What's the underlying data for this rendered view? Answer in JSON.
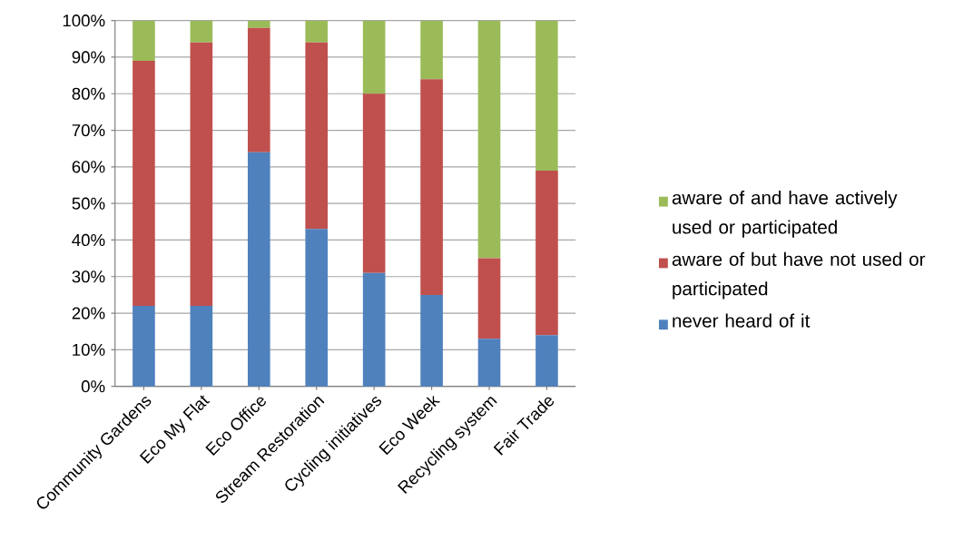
{
  "chart_data": {
    "type": "bar",
    "stacked": true,
    "grid": "y",
    "legend": "right",
    "categories": [
      "Community Gardens",
      "Eco My Flat",
      "Eco Office",
      "Stream Restoration",
      "Cycling initiatives",
      "Eco Week",
      "Recycling system",
      "Fair Trade"
    ],
    "ylim": [
      0,
      100
    ],
    "yticks": [
      {
        "value": 0,
        "label": "0%"
      },
      {
        "value": 10,
        "label": "10%"
      },
      {
        "value": 20,
        "label": "20%"
      },
      {
        "value": 30,
        "label": "30%"
      },
      {
        "value": 40,
        "label": "40%"
      },
      {
        "value": 50,
        "label": "50%"
      },
      {
        "value": 60,
        "label": "60%"
      },
      {
        "value": 70,
        "label": "70%"
      },
      {
        "value": 80,
        "label": "80%"
      },
      {
        "value": 90,
        "label": "90%"
      },
      {
        "value": 100,
        "label": "100%"
      }
    ],
    "series": [
      {
        "name": "never heard of it",
        "color": "#4f81bd",
        "values": [
          22,
          22,
          64,
          43,
          31,
          25,
          13,
          14
        ]
      },
      {
        "name": "aware of but have not used or participated",
        "color": "#c0504d",
        "values": [
          67,
          72,
          34,
          51,
          49,
          59,
          22,
          45
        ]
      },
      {
        "name": "aware of and have actively used or participated",
        "color": "#9bbb59",
        "values": [
          11,
          6,
          2,
          6,
          20,
          16,
          65,
          41
        ]
      }
    ]
  }
}
